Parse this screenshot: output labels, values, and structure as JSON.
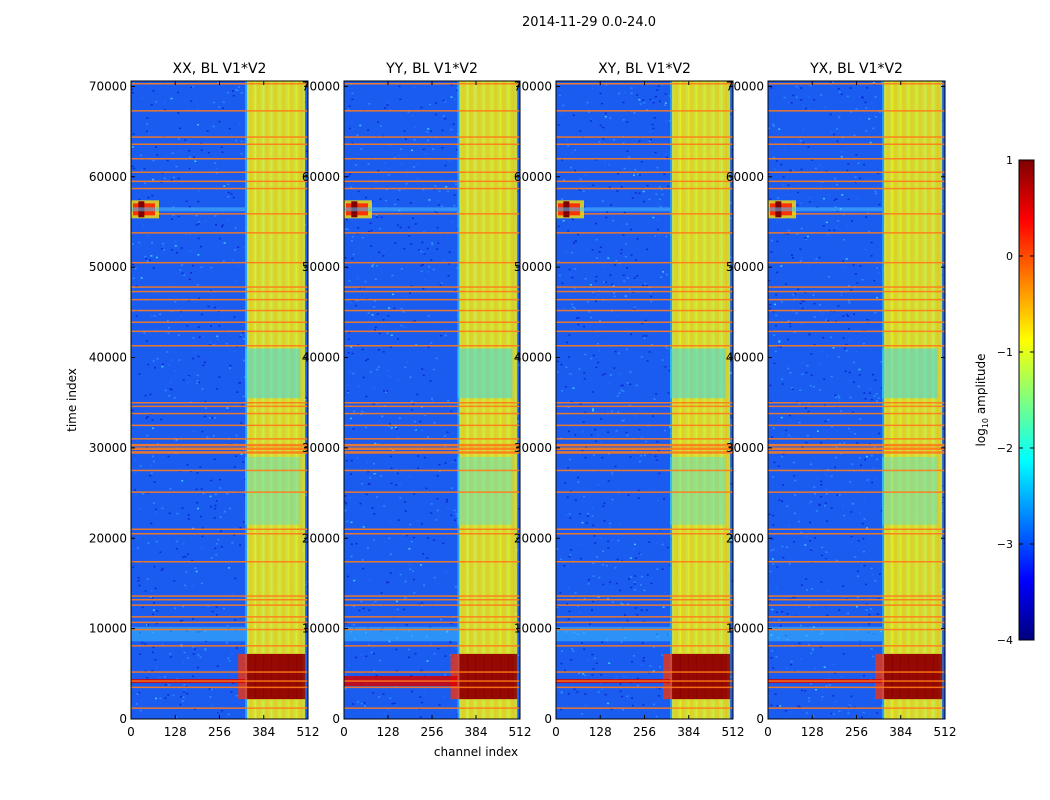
{
  "figure_title": "2014-11-29 0.0-24.0",
  "chart_data": [
    {
      "type": "heatmap",
      "title": "XX, BL V1*V2",
      "xlabel": "channel index",
      "ylabel": "time index",
      "xlim": [
        0,
        512
      ],
      "ylim": [
        0,
        70600
      ],
      "xticks": [
        0,
        128,
        256,
        384,
        512
      ],
      "yticks": [
        0,
        10000,
        20000,
        30000,
        40000,
        50000,
        60000,
        70000
      ],
      "xtick_labels": [
        "0",
        "128",
        "256",
        "384",
        "512"
      ],
      "ytick_labels": [
        "0",
        "10000",
        "20000",
        "30000",
        "40000",
        "50000",
        "60000",
        "70000"
      ],
      "z_quantity": "log10 amplitude"
    },
    {
      "type": "heatmap",
      "title": "YY, BL V1*V2",
      "xlim": [
        0,
        512
      ],
      "ylim": [
        0,
        70600
      ],
      "xticks": [
        0,
        128,
        256,
        384,
        512
      ],
      "yticks": [
        0,
        10000,
        20000,
        30000,
        40000,
        50000,
        60000,
        70000
      ],
      "xtick_labels": [
        "0",
        "128",
        "256",
        "384",
        "512"
      ],
      "ytick_labels": [
        "0",
        "10000",
        "20000",
        "30000",
        "40000",
        "50000",
        "60000",
        "70000"
      ],
      "z_quantity": "log10 amplitude"
    },
    {
      "type": "heatmap",
      "title": "XY, BL V1*V2",
      "xlim": [
        0,
        512
      ],
      "ylim": [
        0,
        70600
      ],
      "xticks": [
        0,
        128,
        256,
        384,
        512
      ],
      "yticks": [
        0,
        10000,
        20000,
        30000,
        40000,
        50000,
        60000,
        70000
      ],
      "xtick_labels": [
        "0",
        "128",
        "256",
        "384",
        "512"
      ],
      "ytick_labels": [
        "0",
        "10000",
        "20000",
        "30000",
        "40000",
        "50000",
        "60000",
        "70000"
      ],
      "z_quantity": "log10 amplitude"
    },
    {
      "type": "heatmap",
      "title": "YX, BL V1*V2",
      "xlim": [
        0,
        512
      ],
      "ylim": [
        0,
        70600
      ],
      "xticks": [
        0,
        128,
        256,
        384,
        512
      ],
      "yticks": [
        0,
        10000,
        20000,
        30000,
        40000,
        50000,
        60000,
        70000
      ],
      "xtick_labels": [
        "0",
        "128",
        "256",
        "384",
        "512"
      ],
      "ytick_labels": [
        "0",
        "10000",
        "20000",
        "30000",
        "40000",
        "50000",
        "60000",
        "70000"
      ],
      "z_quantity": "log10 amplitude"
    }
  ],
  "colorbar": {
    "label": "log10 amplitude",
    "label_base": "log",
    "label_sub": "10",
    "label_rest": " amplitude",
    "range": [
      -4,
      1
    ],
    "ticks": [
      1,
      0,
      -1,
      -2,
      -3,
      -4
    ],
    "tick_labels": [
      "1",
      "0",
      "−1",
      "−2",
      "−3",
      "−4"
    ],
    "colormap": "jet",
    "colors": [
      "#00007f",
      "#0000ff",
      "#007fff",
      "#00ffff",
      "#7fff7f",
      "#ffff00",
      "#ff7f00",
      "#ff0000",
      "#7f0000"
    ]
  },
  "features": {
    "rfi_band_channels": [
      330,
      490
    ],
    "rfi_stripe_channels": [
      330,
      352,
      376,
      400,
      424,
      448,
      472
    ],
    "flagged_time_rows": [
      1200,
      3500,
      4200,
      5200,
      8100,
      9900,
      10700,
      11300,
      12600,
      13200,
      13600,
      17400,
      20500,
      21000,
      25100,
      27500,
      29500,
      29900,
      30300,
      31000,
      32500,
      33800,
      34600,
      35000,
      41300,
      42900,
      43900,
      45200,
      46400,
      47300,
      47800,
      50500,
      53800,
      55900,
      58700,
      59500,
      60500,
      62000,
      63600,
      64400,
      67300,
      70300
    ],
    "burst_channel": 30,
    "burst_time": 56400
  }
}
